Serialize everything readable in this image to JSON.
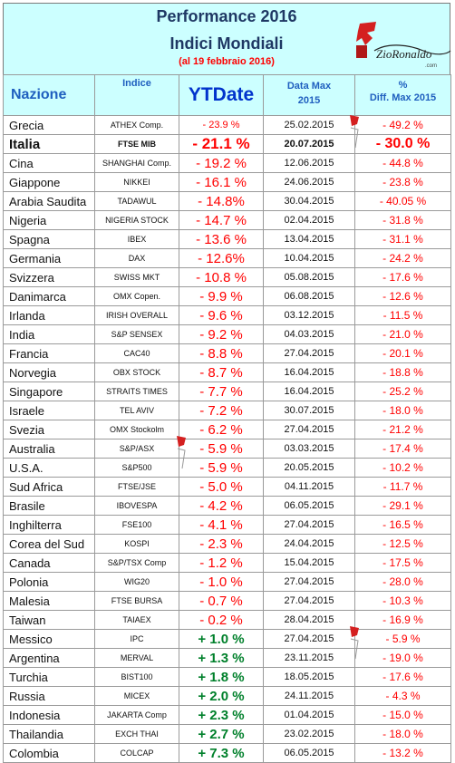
{
  "title": {
    "line1": "Performance 2016",
    "line2": "Indici Mondiali",
    "subtitle": "(al 19 febbraio 2016)",
    "logo_text": "ZioRonaldo.com"
  },
  "headers": {
    "nazione": "Nazione",
    "indice": "Indice",
    "ytdate": "YTDate",
    "data_max_1": "Data Max",
    "data_max_2": "2015",
    "diff_1": "%",
    "diff_2": "Diff. Max 2015"
  },
  "colors": {
    "header_bg": "#ccffff",
    "negative": "#ff0000",
    "positive": "#00802b",
    "title": "#1f3864"
  },
  "rows": [
    {
      "nazione": "Grecia",
      "indice": "ATHEX Comp.",
      "ytd": "- 23.9 %",
      "data": "25.02.2015",
      "diff": "- 49.2 %",
      "ytd_sign": "neg",
      "ytd_small": true
    },
    {
      "nazione": "Italia",
      "indice": "FTSE MIB",
      "ytd": "- 21.1 %",
      "data": "20.07.2015",
      "diff": "- 30.0 %",
      "ytd_sign": "neg",
      "bold": true
    },
    {
      "nazione": "Cina",
      "indice": "SHANGHAI Comp.",
      "ytd": "- 19.2 %",
      "data": "12.06.2015",
      "diff": "- 44.8 %",
      "ytd_sign": "neg"
    },
    {
      "nazione": "Giappone",
      "indice": "NIKKEI",
      "ytd": "- 16.1 %",
      "data": "24.06.2015",
      "diff": "- 23.8 %",
      "ytd_sign": "neg"
    },
    {
      "nazione": "Arabia Saudita",
      "indice": "TADAWUL",
      "ytd": "- 14.8%",
      "data": "30.04.2015",
      "diff": "- 40.05 %",
      "ytd_sign": "neg"
    },
    {
      "nazione": "Nigeria",
      "indice": "NIGERIA STOCK",
      "ytd": "- 14.7 %",
      "data": "02.04.2015",
      "diff": "- 31.8 %",
      "ytd_sign": "neg"
    },
    {
      "nazione": "Spagna",
      "indice": "IBEX",
      "ytd": "- 13.6 %",
      "data": "13.04.2015",
      "diff": "- 31.1 %",
      "ytd_sign": "neg"
    },
    {
      "nazione": "Germania",
      "indice": "DAX",
      "ytd": "- 12.6%",
      "data": "10.04.2015",
      "diff": "- 24.2 %",
      "ytd_sign": "neg"
    },
    {
      "nazione": "Svizzera",
      "indice": "SWISS MKT",
      "ytd": "- 10.8 %",
      "data": "05.08.2015",
      "diff": "- 17.6 %",
      "ytd_sign": "neg"
    },
    {
      "nazione": "Danimarca",
      "indice": "OMX Copen.",
      "ytd": "- 9.9 %",
      "data": "06.08.2015",
      "diff": "- 12.6 %",
      "ytd_sign": "neg"
    },
    {
      "nazione": "Irlanda",
      "indice": "IRISH OVERALL",
      "ytd": "- 9.6 %",
      "data": "03.12.2015",
      "diff": "- 11.5 %",
      "ytd_sign": "neg"
    },
    {
      "nazione": "India",
      "indice": "S&P SENSEX",
      "ytd": "- 9.2 %",
      "data": "04.03.2015",
      "diff": "- 21.0 %",
      "ytd_sign": "neg"
    },
    {
      "nazione": "Francia",
      "indice": "CAC40",
      "ytd": "- 8.8 %",
      "data": "27.04.2015",
      "diff": "- 20.1 %",
      "ytd_sign": "neg"
    },
    {
      "nazione": "Norvegia",
      "indice": "OBX STOCK",
      "ytd": "- 8.7 %",
      "data": "16.04.2015",
      "diff": "- 18.8 %",
      "ytd_sign": "neg"
    },
    {
      "nazione": "Singapore",
      "indice": "STRAITS TIMES",
      "ytd": "- 7.7 %",
      "data": "16.04.2015",
      "diff": "- 25.2 %",
      "ytd_sign": "neg"
    },
    {
      "nazione": "Israele",
      "indice": "TEL AVIV",
      "ytd": "- 7.2 %",
      "data": "30.07.2015",
      "diff": "- 18.0 %",
      "ytd_sign": "neg"
    },
    {
      "nazione": "Svezia",
      "indice": "OMX Stockolm",
      "ytd": "- 6.2 %",
      "data": "27.04.2015",
      "diff": "- 21.2 %",
      "ytd_sign": "neg"
    },
    {
      "nazione": "Australia",
      "indice": "S&P/ASX",
      "ytd": "- 5.9 %",
      "data": "03.03.2015",
      "diff": "- 17.4 %",
      "ytd_sign": "neg"
    },
    {
      "nazione": "U.S.A.",
      "indice": "S&P500",
      "ytd": "- 5.9 %",
      "data": "20.05.2015",
      "diff": "- 10.2 %",
      "ytd_sign": "neg"
    },
    {
      "nazione": "Sud Africa",
      "indice": "FTSE/JSE",
      "ytd": "- 5.0 %",
      "data": "04.11.2015",
      "diff": "- 11.7 %",
      "ytd_sign": "neg"
    },
    {
      "nazione": "Brasile",
      "indice": "IBOVESPA",
      "ytd": "- 4.2 %",
      "data": "06.05.2015",
      "diff": "- 29.1 %",
      "ytd_sign": "neg"
    },
    {
      "nazione": "Inghilterra",
      "indice": "FSE100",
      "ytd": "- 4.1 %",
      "data": "27.04.2015",
      "diff": "- 16.5 %",
      "ytd_sign": "neg"
    },
    {
      "nazione": "Corea del Sud",
      "indice": "KOSPI",
      "ytd": "- 2.3 %",
      "data": "24.04.2015",
      "diff": "- 12.5 %",
      "ytd_sign": "neg"
    },
    {
      "nazione": "Canada",
      "indice": "S&P/TSX Comp",
      "ytd": "- 1.2 %",
      "data": "15.04.2015",
      "diff": "- 17.5 %",
      "ytd_sign": "neg"
    },
    {
      "nazione": "Polonia",
      "indice": "WIG20",
      "ytd": "- 1.0 %",
      "data": "27.04.2015",
      "diff": "- 28.0 %",
      "ytd_sign": "neg"
    },
    {
      "nazione": "Malesia",
      "indice": "FTSE BURSA",
      "ytd": "- 0.7 %",
      "data": "27.04.2015",
      "diff": "- 10.3 %",
      "ytd_sign": "neg"
    },
    {
      "nazione": "Taiwan",
      "indice": "TAIAEX",
      "ytd": "- 0.2 %",
      "data": "28.04.2015",
      "diff": "- 16.9 %",
      "ytd_sign": "neg"
    },
    {
      "nazione": "Messico",
      "indice": "IPC",
      "ytd": "+ 1.0 %",
      "data": "27.04.2015",
      "diff": "- 5.9 %",
      "ytd_sign": "pos"
    },
    {
      "nazione": "Argentina",
      "indice": "MERVAL",
      "ytd": "+ 1.3 %",
      "data": "23.11.2015",
      "diff": "- 19.0 %",
      "ytd_sign": "pos"
    },
    {
      "nazione": "Turchia",
      "indice": "BIST100",
      "ytd": "+ 1.8 %",
      "data": "18.05.2015",
      "diff": "- 17.6 %",
      "ytd_sign": "pos"
    },
    {
      "nazione": "Russia",
      "indice": "MICEX",
      "ytd": "+ 2.0 %",
      "data": "24.11.2015",
      "diff": "- 4.3 %",
      "ytd_sign": "pos"
    },
    {
      "nazione": "Indonesia",
      "indice": "JAKARTA Comp",
      "ytd": "+ 2.3 %",
      "data": "01.04.2015",
      "diff": "- 15.0 %",
      "ytd_sign": "pos"
    },
    {
      "nazione": "Thailandia",
      "indice": "EXCH THAI",
      "ytd": "+ 2.7 %",
      "data": "23.02.2015",
      "diff": "- 18.0 %",
      "ytd_sign": "pos"
    },
    {
      "nazione": "Colombia",
      "indice": "COLCAP",
      "ytd": "+ 7.3 %",
      "data": "06.05.2015",
      "diff": "- 13.2 %",
      "ytd_sign": "pos"
    }
  ]
}
